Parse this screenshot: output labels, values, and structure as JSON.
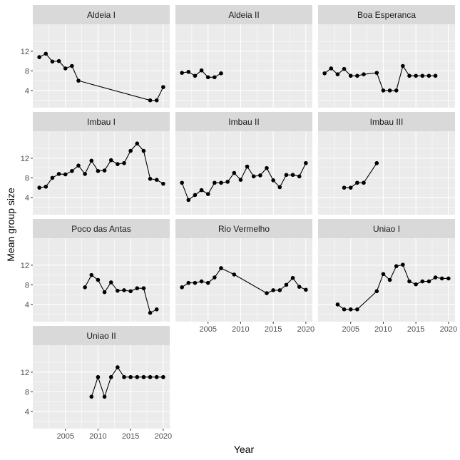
{
  "chart_data": {
    "type": "line",
    "facet_layout": "wrap-3-columns",
    "xlabel": "Year",
    "ylabel": "Mean group size",
    "xlim": [
      2000,
      2021
    ],
    "ylim": [
      0.5,
      17.5
    ],
    "x_ticks": [
      2005,
      2010,
      2015,
      2020
    ],
    "y_ticks": [
      4,
      8,
      12
    ],
    "grid": true,
    "panels": [
      {
        "name": "Aldeia I",
        "points": [
          [
            2001,
            10.8
          ],
          [
            2002,
            11.5
          ],
          [
            2003,
            9.9
          ],
          [
            2004,
            10.0
          ],
          [
            2005,
            8.5
          ],
          [
            2006,
            9.0
          ],
          [
            2007,
            6.0
          ],
          [
            2018,
            2.0
          ],
          [
            2019,
            2.0
          ],
          [
            2020,
            4.7
          ]
        ]
      },
      {
        "name": "Aldeia II",
        "points": [
          [
            2001,
            7.6
          ],
          [
            2002,
            7.8
          ],
          [
            2003,
            7.0
          ],
          [
            2004,
            8.1
          ],
          [
            2005,
            6.7
          ],
          [
            2006,
            6.7
          ],
          [
            2007,
            7.5
          ]
        ]
      },
      {
        "name": "Boa Esperanca",
        "points": [
          [
            2001,
            7.5
          ],
          [
            2002,
            8.5
          ],
          [
            2003,
            7.3
          ],
          [
            2004,
            8.4
          ],
          [
            2005,
            7.0
          ],
          [
            2006,
            7.0
          ],
          [
            2007,
            7.3
          ],
          [
            2009,
            7.6
          ],
          [
            2010,
            4.0
          ],
          [
            2011,
            4.0
          ],
          [
            2012,
            4.0
          ],
          [
            2013,
            9.0
          ],
          [
            2014,
            7.0
          ],
          [
            2015,
            7.0
          ],
          [
            2016,
            7.0
          ],
          [
            2017,
            7.0
          ],
          [
            2018,
            7.0
          ]
        ]
      },
      {
        "name": "Imbau I",
        "points": [
          [
            2001,
            6.0
          ],
          [
            2002,
            6.2
          ],
          [
            2003,
            8.0
          ],
          [
            2004,
            8.8
          ],
          [
            2005,
            8.7
          ],
          [
            2006,
            9.4
          ],
          [
            2007,
            10.5
          ],
          [
            2008,
            8.8
          ],
          [
            2009,
            11.5
          ],
          [
            2010,
            9.4
          ],
          [
            2011,
            9.5
          ],
          [
            2012,
            11.6
          ],
          [
            2013,
            10.8
          ],
          [
            2014,
            11.0
          ],
          [
            2015,
            13.5
          ],
          [
            2016,
            15.0
          ],
          [
            2017,
            13.5
          ],
          [
            2018,
            7.8
          ],
          [
            2019,
            7.6
          ],
          [
            2020,
            6.8
          ]
        ]
      },
      {
        "name": "Imbau II",
        "points": [
          [
            2001,
            7.0
          ],
          [
            2002,
            3.5
          ],
          [
            2003,
            4.5
          ],
          [
            2004,
            5.5
          ],
          [
            2005,
            4.7
          ],
          [
            2006,
            7.0
          ],
          [
            2007,
            7.0
          ],
          [
            2008,
            7.2
          ],
          [
            2009,
            9.0
          ],
          [
            2010,
            7.6
          ],
          [
            2011,
            10.3
          ],
          [
            2012,
            8.3
          ],
          [
            2013,
            8.5
          ],
          [
            2014,
            10.0
          ],
          [
            2015,
            7.5
          ],
          [
            2016,
            6.1
          ],
          [
            2017,
            8.6
          ],
          [
            2018,
            8.6
          ],
          [
            2019,
            8.3
          ],
          [
            2020,
            11.0
          ]
        ]
      },
      {
        "name": "Imbau III",
        "points": [
          [
            2004,
            6.0
          ],
          [
            2005,
            6.0
          ],
          [
            2006,
            7.0
          ],
          [
            2007,
            7.0
          ],
          [
            2009,
            11.0
          ]
        ]
      },
      {
        "name": "Poco das Antas",
        "points": [
          [
            2008,
            7.5
          ],
          [
            2009,
            10.0
          ],
          [
            2010,
            9.0
          ],
          [
            2011,
            6.5
          ],
          [
            2012,
            8.5
          ],
          [
            2013,
            6.8
          ],
          [
            2014,
            6.9
          ],
          [
            2015,
            6.7
          ],
          [
            2016,
            7.3
          ],
          [
            2017,
            7.3
          ],
          [
            2018,
            2.3
          ],
          [
            2019,
            3.0
          ]
        ]
      },
      {
        "name": "Rio Vermelho",
        "points": [
          [
            2001,
            7.5
          ],
          [
            2002,
            8.4
          ],
          [
            2003,
            8.4
          ],
          [
            2004,
            8.7
          ],
          [
            2005,
            8.4
          ],
          [
            2006,
            9.5
          ],
          [
            2007,
            11.4
          ],
          [
            2009,
            10.1
          ],
          [
            2014,
            6.3
          ],
          [
            2015,
            6.9
          ],
          [
            2016,
            6.9
          ],
          [
            2017,
            8.0
          ],
          [
            2018,
            9.4
          ],
          [
            2019,
            7.6
          ],
          [
            2020,
            7.0
          ]
        ]
      },
      {
        "name": "Uniao I",
        "points": [
          [
            2003,
            4.0
          ],
          [
            2004,
            3.0
          ],
          [
            2005,
            3.0
          ],
          [
            2006,
            3.0
          ],
          [
            2009,
            6.7
          ],
          [
            2010,
            10.2
          ],
          [
            2011,
            9.0
          ],
          [
            2012,
            11.8
          ],
          [
            2013,
            12.1
          ],
          [
            2014,
            8.7
          ],
          [
            2015,
            8.1
          ],
          [
            2016,
            8.7
          ],
          [
            2017,
            8.7
          ],
          [
            2018,
            9.5
          ],
          [
            2019,
            9.3
          ],
          [
            2020,
            9.3
          ]
        ]
      },
      {
        "name": "Uniao II",
        "points": [
          [
            2009,
            7.0
          ],
          [
            2010,
            11.0
          ],
          [
            2011,
            7.0
          ],
          [
            2012,
            11.0
          ],
          [
            2013,
            13.0
          ],
          [
            2014,
            11.0
          ],
          [
            2015,
            11.0
          ],
          [
            2016,
            11.0
          ],
          [
            2017,
            11.0
          ],
          [
            2018,
            11.0
          ],
          [
            2019,
            11.0
          ],
          [
            2020,
            11.0
          ]
        ]
      }
    ]
  }
}
